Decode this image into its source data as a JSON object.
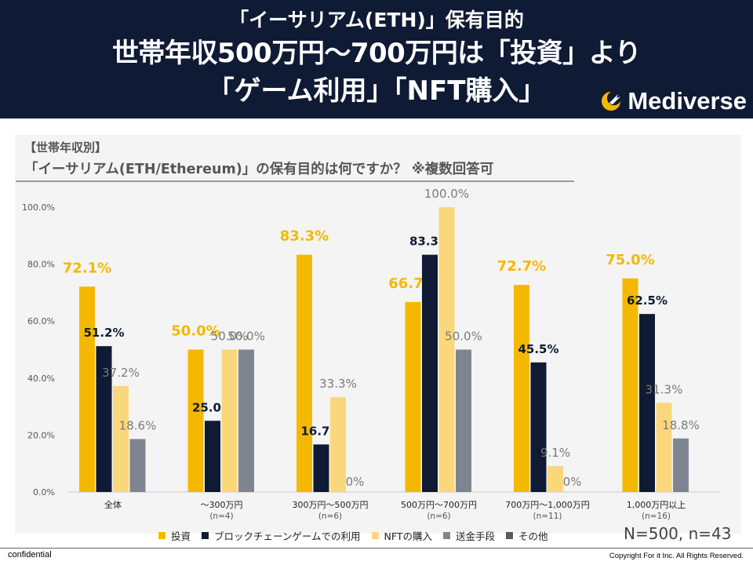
{
  "header": {
    "line1": "「イーサリアム(ETH)」保有目的",
    "line2": "世帯年収500万円〜700万円は「投資」より",
    "line3": "「ゲーム利用」「NFT購入」",
    "logo_text": "Mediverse"
  },
  "panel": {
    "caption1": "【世帯年収別】",
    "caption2": "「イーサリアム(ETH/Ethereum)」の保有目的は何ですか？  ※複数回答可"
  },
  "chart_data": {
    "type": "bar",
    "title": "「イーサリアム(ETH/Ethereum)」の保有目的は何ですか？  ※複数回答可",
    "categories": [
      "全体",
      "〜300万円",
      "300万円〜500万円",
      "500万円〜700万円",
      "700万円〜1,000万円",
      "1,000万円以上"
    ],
    "category_n": [
      "",
      "(n=4)",
      "(n=6)",
      "(n=6)",
      "(n=11)",
      "(n=16)"
    ],
    "ylim": [
      0,
      100
    ],
    "yticks": [
      "0.0%",
      "20.0%",
      "40.0%",
      "60.0%",
      "80.0%",
      "100.0%"
    ],
    "grid": false,
    "legend_position": "bottom",
    "series": [
      {
        "name": "投資",
        "color": "#f5b800",
        "values": [
          72.1,
          50.0,
          83.3,
          66.7,
          72.7,
          75.0
        ],
        "labels": [
          "72.1%",
          "50.0%",
          "83.3%",
          "66.7%",
          "72.7%",
          "75.0%"
        ]
      },
      {
        "name": "ブロックチェーンゲームでの利用",
        "color": "#0f1b35",
        "values": [
          51.2,
          25.0,
          16.7,
          83.3,
          45.5,
          62.5
        ],
        "labels": [
          "51.2%",
          "25.0%",
          "16.7%",
          "83.3%",
          "45.5%",
          "62.5%"
        ]
      },
      {
        "name": "NFTの購入",
        "color": "#fad77b",
        "values": [
          37.2,
          50.0,
          33.3,
          100.0,
          9.1,
          31.3
        ],
        "labels": [
          "37.2%",
          "50.0%",
          "33.3%",
          "100.0%",
          "9.1%",
          "31.3%"
        ]
      },
      {
        "name": "送金手段",
        "color": "#7f8590",
        "values": [
          18.6,
          50.0,
          0,
          50.0,
          0,
          18.8
        ],
        "labels": [
          "18.6%",
          "50.0%",
          "0%",
          "50.0%",
          "0%",
          "18.8%"
        ]
      },
      {
        "name": "その他",
        "color": "#595959",
        "values": [
          0,
          0,
          0,
          0,
          0,
          0
        ],
        "labels": [
          "",
          "",
          "",
          "",
          "",
          ""
        ]
      }
    ],
    "sample_note": "N=500, n=43"
  },
  "footer": {
    "confidential": "confidential",
    "copyright": "Copyright For it Inc. All Rights Reserved."
  }
}
